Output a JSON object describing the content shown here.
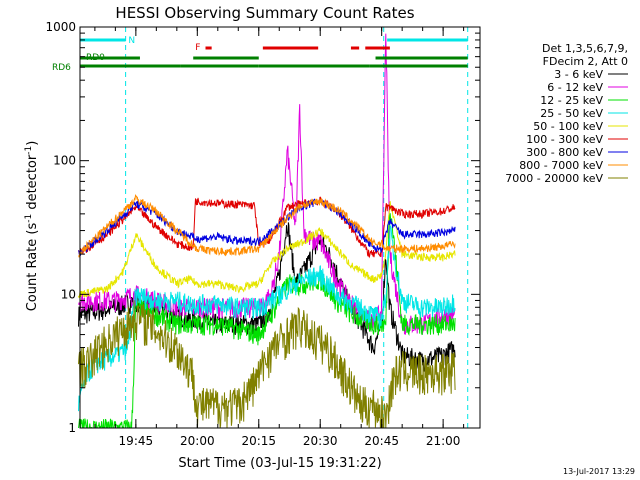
{
  "chart_data": {
    "type": "line",
    "title": "HESSI Observing Summary Count Rates",
    "xlabel": "Start Time (03-Jul-15 19:31:22)",
    "ylabel": "Count Rate (s",
    "ylabel_sup": "-1",
    "ylabel_tail": " detector",
    "ylabel_end": ")",
    "y_scale": "log",
    "ylim": [
      1,
      1000
    ],
    "xlim": [
      "19:31:22",
      "21:09:00"
    ],
    "x_ticks": [
      "19:45",
      "20:00",
      "20:15",
      "20:30",
      "20:45",
      "21:00"
    ],
    "y_ticks": [
      "1",
      "10",
      "100",
      "1000"
    ],
    "legend": {
      "placement": "right",
      "header": [
        "Det 1,3,5,6,7,9,",
        "FDecim 2, Att 0"
      ],
      "entries": [
        {
          "label": "3 - 6 keV",
          "color": "#000000"
        },
        {
          "label": "6 - 12 keV",
          "color": "#e000e0"
        },
        {
          "label": "12 - 25 keV",
          "color": "#00e000"
        },
        {
          "label": "25 - 50 keV",
          "color": "#00e6e6"
        },
        {
          "label": "50 - 100 keV",
          "color": "#e6e600"
        },
        {
          "label": "100 - 300 keV",
          "color": "#e00000"
        },
        {
          "label": "300 - 800 keV",
          "color": "#0000e0"
        },
        {
          "label": "800 - 7000 keV",
          "color": "#ff8c00"
        },
        {
          "label": "7000 - 20000 keV",
          "color": "#808000"
        }
      ]
    },
    "flag_labels": {
      "n": "N",
      "f": "F",
      "rd0": "RD0",
      "rd6": "RD6"
    },
    "flag_colors": {
      "n": "#00e6e6",
      "f": "#e00000",
      "rd0": "#008000",
      "rd6": "#008000"
    },
    "series": [
      {
        "label": "3 - 6 keV",
        "color": "#000000",
        "x": [
          "19:31",
          "19:40",
          "19:45",
          "19:50",
          "19:55",
          "19:58",
          "20:00",
          "20:05",
          "20:10",
          "20:15",
          "20:18",
          "20:20",
          "20:22",
          "20:24",
          "20:26",
          "20:28",
          "20:30",
          "20:33",
          "20:36",
          "20:40",
          "20:43",
          "20:45",
          "20:46",
          "20:47",
          "20:50",
          "20:55",
          "21:00",
          "21:03"
        ],
        "y": [
          7,
          8,
          9,
          8,
          7,
          6.5,
          6.5,
          6,
          6,
          6,
          8,
          14,
          35,
          12,
          15,
          20,
          26,
          18,
          10,
          6,
          4,
          6,
          20,
          8,
          3.5,
          3.2,
          3.5,
          4
        ]
      },
      {
        "label": "6 - 12 keV",
        "color": "#e000e0",
        "x": [
          "19:31",
          "19:40",
          "19:45",
          "19:50",
          "19:55",
          "19:58",
          "20:00",
          "20:05",
          "20:10",
          "20:15",
          "20:18",
          "20:20",
          "20:22",
          "20:24",
          "20:25",
          "20:26",
          "20:28",
          "20:30",
          "20:33",
          "20:36",
          "20:40",
          "20:43",
          "20:45",
          "20:46",
          "20:47",
          "20:50",
          "20:55",
          "21:00",
          "21:03"
        ],
        "y": [
          9,
          9,
          10,
          9,
          8,
          8,
          8,
          8,
          8,
          8,
          10,
          20,
          120,
          30,
          250,
          30,
          25,
          25,
          15,
          10,
          7,
          6,
          8,
          1000,
          20,
          6,
          6,
          7,
          7
        ]
      },
      {
        "label": "12 - 25 keV",
        "color": "#00e000",
        "x": [
          "19:31",
          "19:40",
          "19:44",
          "19:45",
          "19:50",
          "19:55",
          "19:58",
          "20:00",
          "20:05",
          "20:10",
          "20:15",
          "20:18",
          "20:22",
          "20:26",
          "20:30",
          "20:34",
          "20:38",
          "20:43",
          "20:45",
          "20:46",
          "20:47",
          "20:50",
          "20:55",
          "21:00",
          "21:03"
        ],
        "y": [
          1,
          1,
          1,
          8,
          7,
          6,
          6,
          6,
          6,
          5.5,
          5,
          7,
          12,
          12,
          13,
          9,
          7,
          6,
          6,
          6,
          50,
          6,
          6,
          6,
          6
        ]
      },
      {
        "label": "25 - 50 keV",
        "color": "#00e6e6",
        "x": [
          "19:31",
          "19:33",
          "19:35",
          "19:40",
          "19:43",
          "19:45",
          "19:50",
          "19:55",
          "19:58",
          "20:00",
          "20:05",
          "20:10",
          "20:15",
          "20:18",
          "20:22",
          "20:26",
          "20:30",
          "20:34",
          "20:38",
          "20:43",
          "20:45",
          "20:46",
          "20:47",
          "20:50",
          "20:55",
          "21:00",
          "21:03"
        ],
        "y": [
          1.5,
          2.5,
          3,
          3.5,
          4,
          10,
          9,
          9,
          8.5,
          8.5,
          8.5,
          8,
          8,
          9,
          11,
          13,
          14,
          10,
          8.5,
          7,
          6.5,
          10,
          30,
          9,
          8,
          8,
          9
        ]
      },
      {
        "label": "50 - 100 keV",
        "color": "#e6e600",
        "x": [
          "19:31",
          "19:38",
          "19:42",
          "19:45",
          "19:50",
          "19:55",
          "19:58",
          "20:00",
          "20:05",
          "20:10",
          "20:15",
          "20:18",
          "20:22",
          "20:26",
          "20:30",
          "20:34",
          "20:38",
          "20:43",
          "20:45",
          "20:46",
          "20:47",
          "20:50",
          "20:55",
          "21:00",
          "21:03"
        ],
        "y": [
          10,
          11,
          15,
          28,
          16,
          12,
          13,
          12,
          12,
          11,
          12,
          17,
          22,
          25,
          30,
          22,
          16,
          13,
          14,
          20,
          50,
          20,
          19,
          19,
          20
        ]
      },
      {
        "label": "100 - 300 keV",
        "color": "#e00000",
        "x": [
          "19:31",
          "19:38",
          "19:45",
          "19:50",
          "19:55",
          "19:59",
          "19:59.5",
          "20:05",
          "20:10",
          "20:14",
          "20:15",
          "20:18",
          "20:22",
          "20:26",
          "20:30",
          "20:34",
          "20:38",
          "20:42",
          "20:45",
          "20:46",
          "20:47",
          "20:50",
          "20:55",
          "21:00",
          "21:03"
        ],
        "y": [
          20,
          28,
          45,
          32,
          24,
          22,
          50,
          48,
          47,
          46,
          23,
          26,
          45,
          48,
          50,
          43,
          30,
          20,
          20,
          45,
          45,
          40,
          40,
          42,
          45
        ]
      },
      {
        "label": "300 - 800 keV",
        "color": "#0000e0",
        "x": [
          "19:31",
          "19:38",
          "19:45",
          "19:50",
          "19:55",
          "20:00",
          "20:05",
          "20:10",
          "20:15",
          "20:20",
          "20:25",
          "20:30",
          "20:35",
          "20:40",
          "20:43",
          "20:45",
          "20:46",
          "20:47",
          "20:50",
          "20:55",
          "21:00",
          "21:03"
        ],
        "y": [
          20,
          30,
          48,
          40,
          30,
          26,
          27,
          25,
          25,
          33,
          45,
          50,
          40,
          28,
          22,
          22,
          28,
          35,
          28,
          28,
          29,
          30
        ]
      },
      {
        "label": "800 - 7000 keV",
        "color": "#ff8c00",
        "x": [
          "19:31",
          "19:38",
          "19:45",
          "19:50",
          "19:55",
          "20:00",
          "20:05",
          "20:10",
          "20:15",
          "20:20",
          "20:25",
          "20:30",
          "20:35",
          "20:40",
          "20:43",
          "20:45",
          "20:46",
          "20:47",
          "20:50",
          "20:55",
          "21:00",
          "21:03"
        ],
        "y": [
          20,
          32,
          52,
          42,
          30,
          22,
          21,
          21,
          22,
          32,
          46,
          50,
          42,
          30,
          24,
          24,
          22,
          22,
          22,
          22,
          23,
          24
        ]
      },
      {
        "label": "7000 - 20000 keV",
        "color": "#808000",
        "x": [
          "19:31",
          "19:33",
          "19:36",
          "19:40",
          "19:43",
          "19:45",
          "19:50",
          "19:55",
          "19:59",
          "20:00",
          "20:05",
          "20:10",
          "20:13",
          "20:15",
          "20:17",
          "20:20",
          "20:23",
          "20:25",
          "20:28",
          "20:32",
          "20:36",
          "20:40",
          "20:43",
          "20:46",
          "20:47",
          "20:48",
          "20:50",
          "20:55",
          "21:00",
          "21:03"
        ],
        "y": [
          3,
          3,
          4,
          5,
          6,
          7,
          5.5,
          4,
          2.5,
          1.5,
          1.5,
          1.5,
          2,
          2.5,
          3.5,
          4.5,
          5.5,
          6,
          5,
          4,
          2.5,
          1.5,
          1.5,
          1.2,
          1.8,
          2.5,
          2.8,
          2.6,
          2.7,
          2.8
        ]
      }
    ],
    "vlines": [
      {
        "x": "19:42:30",
        "color": "#00e6e6"
      },
      {
        "x": "20:45:30",
        "color": "#00e6e6"
      },
      {
        "x": "21:06:00",
        "color": "#00e6e6"
      }
    ],
    "flags": {
      "n": [
        [
          "19:31:22",
          "19:42:30"
        ],
        [
          "20:46:20",
          "21:06:00"
        ]
      ],
      "f": [
        [
          "20:02:00",
          "20:03:30"
        ],
        [
          "20:16:00",
          "20:29:30"
        ],
        [
          "20:37:30",
          "20:39:30"
        ],
        [
          "20:41:00",
          "20:47:00"
        ]
      ],
      "rd0": [
        [
          "19:31:22",
          "19:46:00"
        ],
        [
          "19:59:00",
          "20:15:00"
        ],
        [
          "20:43:30",
          "21:06:00"
        ]
      ],
      "rd6": [
        [
          "19:31:22",
          "19:56:00"
        ],
        [
          "19:56:00",
          "20:15:00"
        ],
        [
          "20:15:00",
          "20:42:00"
        ],
        [
          "20:42:00",
          "21:06:00"
        ]
      ]
    }
  },
  "footer": {
    "timestamp": "13-Jul-2017 13:29"
  }
}
